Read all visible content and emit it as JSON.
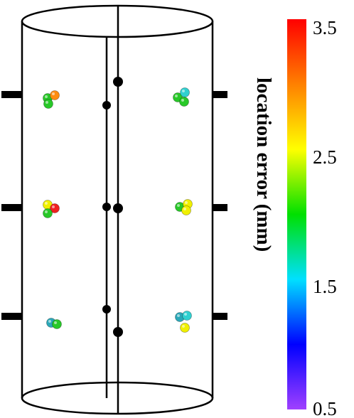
{
  "colorbar": {
    "title": "location error (mm)",
    "ticks": [
      {
        "label": "3.5",
        "value": 3.5
      },
      {
        "label": "2.5",
        "value": 2.5
      },
      {
        "label": "1.5",
        "value": 1.5
      },
      {
        "label": "0.5",
        "value": 0.5
      }
    ],
    "range": [
      0.5,
      3.5
    ],
    "colors": [
      "#a040ff",
      "#0000ff",
      "#00e0ff",
      "#00e000",
      "#ffff00",
      "#ff8000",
      "#ff0000"
    ]
  },
  "sphere_colors": {
    "orange": "#ff8c10",
    "green": "#28c828",
    "cyan": "#30d0d0",
    "yellow": "#f0f000",
    "red": "#f02020",
    "teal": "#2aa8b8"
  },
  "clusters": [
    {
      "id": "upper-left",
      "spheres": [
        "green",
        "orange",
        "green"
      ]
    },
    {
      "id": "upper-right",
      "spheres": [
        "green",
        "cyan",
        "green"
      ]
    },
    {
      "id": "middle-left",
      "spheres": [
        "yellow",
        "red",
        "green"
      ]
    },
    {
      "id": "middle-right",
      "spheres": [
        "green",
        "yellow",
        "yellow"
      ]
    },
    {
      "id": "lower-left",
      "spheres": [
        "teal",
        "green"
      ]
    },
    {
      "id": "lower-right",
      "spheres": [
        "teal",
        "cyan",
        "yellow"
      ]
    }
  ]
}
